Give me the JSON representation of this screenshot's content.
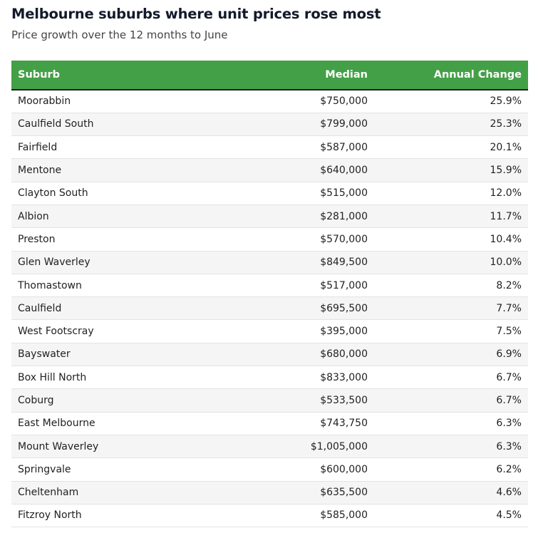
{
  "header": {
    "title": "Melbourne suburbs where unit prices rose most",
    "subtitle": "Price growth over the 12 months to June"
  },
  "colors": {
    "header_bg": "#43a047",
    "header_text": "#ffffff",
    "row_alt_bg": "#f5f5f5"
  },
  "chart_data": {
    "type": "table",
    "title": "Melbourne suburbs where unit prices rose most",
    "subtitle": "Price growth over the 12 months to June",
    "columns": [
      "Suburb",
      "Median",
      "Annual Change"
    ],
    "rows": [
      [
        "Moorabbin",
        "$750,000",
        "25.9%"
      ],
      [
        "Caulfield South",
        "$799,000",
        "25.3%"
      ],
      [
        "Fairfield",
        "$587,000",
        "20.1%"
      ],
      [
        "Mentone",
        "$640,000",
        "15.9%"
      ],
      [
        "Clayton South",
        "$515,000",
        "12.0%"
      ],
      [
        "Albion",
        "$281,000",
        "11.7%"
      ],
      [
        "Preston",
        "$570,000",
        "10.4%"
      ],
      [
        "Glen Waverley",
        "$849,500",
        "10.0%"
      ],
      [
        "Thomastown",
        "$517,000",
        "8.2%"
      ],
      [
        "Caulfield",
        "$695,500",
        "7.7%"
      ],
      [
        "West Footscray",
        "$395,000",
        "7.5%"
      ],
      [
        "Bayswater",
        "$680,000",
        "6.9%"
      ],
      [
        "Box Hill North",
        "$833,000",
        "6.7%"
      ],
      [
        "Coburg",
        "$533,500",
        "6.7%"
      ],
      [
        "East Melbourne",
        "$743,750",
        "6.3%"
      ],
      [
        "Mount Waverley",
        "$1,005,000",
        "6.3%"
      ],
      [
        "Springvale",
        "$600,000",
        "6.2%"
      ],
      [
        "Cheltenham",
        "$635,500",
        "4.6%"
      ],
      [
        "Fitzroy North",
        "$585,000",
        "4.5%"
      ]
    ]
  }
}
